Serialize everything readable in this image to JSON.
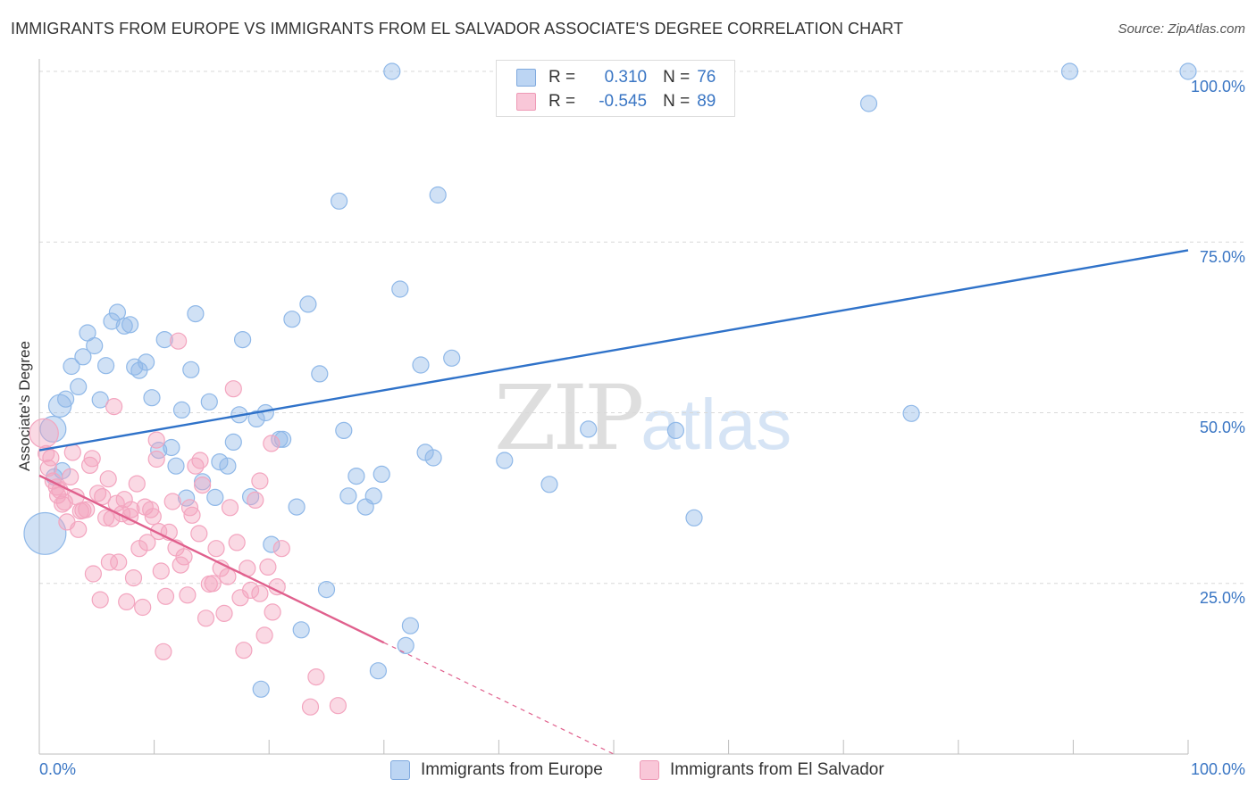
{
  "chart_data": {
    "type": "scatter",
    "title": "IMMIGRANTS FROM EUROPE VS IMMIGRANTS FROM EL SALVADOR ASSOCIATE'S DEGREE CORRELATION CHART",
    "source": "Source: ZipAtlas.com",
    "ylabel": "Associate's Degree",
    "xlim": [
      0,
      100
    ],
    "ylim": [
      0,
      100
    ],
    "x_tick_labels": [
      "0.0%",
      "100.0%"
    ],
    "y_tick_labels": [
      "25.0%",
      "50.0%",
      "75.0%",
      "100.0%"
    ],
    "y_ticks": [
      25,
      50,
      75,
      100
    ],
    "grid": true,
    "watermark": "ZIPatlas",
    "legend": {
      "placement": "top-center",
      "rows": [
        {
          "r_label": "R =",
          "r_value": "0.310",
          "n_label": "N =",
          "n_value": "76"
        },
        {
          "r_label": "R =",
          "r_value": "-0.545",
          "n_label": "N =",
          "n_value": "89"
        }
      ]
    },
    "series": [
      {
        "name": "Immigrants from Europe",
        "color": "#8fb8e8",
        "line_color": "#2f72c9",
        "trend": {
          "x": [
            0,
            100
          ],
          "y": [
            44.5,
            73.8
          ],
          "dashed_from": null
        },
        "points": [
          [
            0.5,
            32.3,
            2.6
          ],
          [
            1.2,
            47.6,
            1.6
          ],
          [
            1.3,
            40.6,
            1.0
          ],
          [
            1.8,
            51.0,
            1.4
          ],
          [
            2.3,
            52.0,
            1.0
          ],
          [
            2.8,
            56.8,
            1.0
          ],
          [
            3.4,
            53.8,
            1.0
          ],
          [
            3.8,
            58.2,
            1.0
          ],
          [
            4.2,
            61.7,
            1.0
          ],
          [
            4.8,
            59.8,
            1.0
          ],
          [
            5.3,
            51.9,
            1.0
          ],
          [
            5.8,
            56.9,
            1.0
          ],
          [
            6.3,
            63.4,
            1.0
          ],
          [
            6.8,
            64.7,
            1.0
          ],
          [
            7.4,
            62.7,
            1.0
          ],
          [
            7.9,
            62.9,
            1.0
          ],
          [
            8.3,
            56.7,
            1.0
          ],
          [
            8.7,
            56.2,
            1.0
          ],
          [
            9.3,
            57.4,
            1.0
          ],
          [
            9.8,
            52.2,
            1.0
          ],
          [
            10.4,
            44.5,
            1.0
          ],
          [
            10.9,
            60.7,
            1.0
          ],
          [
            11.5,
            44.9,
            1.0
          ],
          [
            11.9,
            42.2,
            1.0
          ],
          [
            12.4,
            50.4,
            1.0
          ],
          [
            12.8,
            37.5,
            1.0
          ],
          [
            13.2,
            56.3,
            1.0
          ],
          [
            13.6,
            64.5,
            1.0
          ],
          [
            14.2,
            39.9,
            1.0
          ],
          [
            14.8,
            51.6,
            1.0
          ],
          [
            15.3,
            37.6,
            1.0
          ],
          [
            15.7,
            42.8,
            1.0
          ],
          [
            16.4,
            42.2,
            1.0
          ],
          [
            16.9,
            45.7,
            1.0
          ],
          [
            17.4,
            49.7,
            1.0
          ],
          [
            17.7,
            60.7,
            1.0
          ],
          [
            18.4,
            37.7,
            1.0
          ],
          [
            18.9,
            49.1,
            1.0
          ],
          [
            19.3,
            9.5,
            1.0
          ],
          [
            19.7,
            50.0,
            1.0
          ],
          [
            20.2,
            30.7,
            1.0
          ],
          [
            20.9,
            46.1,
            1.0
          ],
          [
            21.2,
            46.1,
            1.0
          ],
          [
            22.0,
            63.7,
            1.0
          ],
          [
            22.4,
            36.2,
            1.0
          ],
          [
            22.8,
            18.2,
            1.0
          ],
          [
            23.4,
            65.9,
            1.0
          ],
          [
            24.4,
            55.7,
            1.0
          ],
          [
            25.0,
            24.1,
            1.0
          ],
          [
            26.1,
            81.0,
            1.0
          ],
          [
            26.5,
            47.4,
            1.0
          ],
          [
            26.9,
            37.8,
            1.0
          ],
          [
            27.6,
            40.7,
            1.0
          ],
          [
            28.4,
            36.2,
            1.0
          ],
          [
            29.1,
            37.8,
            1.0
          ],
          [
            29.5,
            12.2,
            1.0
          ],
          [
            29.8,
            41.0,
            1.0
          ],
          [
            30.7,
            100.0,
            1.0
          ],
          [
            31.4,
            68.1,
            1.0
          ],
          [
            31.9,
            15.9,
            1.0
          ],
          [
            32.3,
            18.8,
            1.0
          ],
          [
            33.2,
            57.0,
            1.0
          ],
          [
            33.6,
            44.2,
            1.0
          ],
          [
            34.3,
            43.4,
            1.0
          ],
          [
            34.7,
            81.9,
            1.0
          ],
          [
            35.9,
            58.0,
            1.0
          ],
          [
            40.5,
            43.0,
            1.0
          ],
          [
            44.4,
            39.5,
            1.0
          ],
          [
            47.8,
            47.6,
            1.0
          ],
          [
            55.4,
            47.4,
            1.0
          ],
          [
            57.0,
            34.6,
            1.0
          ],
          [
            72.2,
            95.3,
            1.0
          ],
          [
            75.9,
            49.9,
            1.0
          ],
          [
            89.7,
            100.0,
            1.0
          ],
          [
            100.0,
            100.0,
            1.0
          ],
          [
            2.0,
            41.5,
            1.0
          ]
        ]
      },
      {
        "name": "Immigrants from El Salvador",
        "color": "#f3a5bf",
        "line_color": "#e0608d",
        "trend": {
          "x": [
            0,
            50
          ],
          "y": [
            40.8,
            0.0
          ],
          "dashed_from": 30.0
        },
        "points": [
          [
            0.4,
            47.0,
            1.8
          ],
          [
            0.6,
            44.0,
            1.0
          ],
          [
            0.8,
            41.9,
            1.0
          ],
          [
            1.0,
            43.4,
            1.0
          ],
          [
            1.2,
            40.0,
            1.0
          ],
          [
            1.5,
            39.1,
            1.0
          ],
          [
            1.6,
            37.9,
            1.0
          ],
          [
            1.8,
            38.6,
            1.0
          ],
          [
            2.0,
            36.6,
            1.0
          ],
          [
            2.2,
            36.9,
            1.0
          ],
          [
            2.4,
            34.0,
            1.0
          ],
          [
            2.7,
            40.6,
            1.0
          ],
          [
            2.9,
            44.2,
            1.0
          ],
          [
            3.2,
            37.7,
            1.0
          ],
          [
            3.4,
            32.9,
            1.0
          ],
          [
            3.6,
            35.6,
            1.0
          ],
          [
            3.8,
            35.7,
            1.0
          ],
          [
            4.1,
            35.8,
            1.0
          ],
          [
            4.4,
            42.3,
            1.0
          ],
          [
            4.6,
            43.3,
            1.0
          ],
          [
            4.7,
            26.4,
            1.0
          ],
          [
            5.1,
            38.2,
            1.0
          ],
          [
            5.3,
            22.6,
            1.0
          ],
          [
            5.5,
            37.7,
            1.0
          ],
          [
            5.8,
            34.6,
            1.0
          ],
          [
            6.0,
            40.3,
            1.0
          ],
          [
            6.1,
            28.1,
            1.0
          ],
          [
            6.3,
            34.5,
            1.0
          ],
          [
            6.5,
            50.9,
            1.0
          ],
          [
            6.7,
            36.7,
            1.0
          ],
          [
            6.9,
            28.1,
            1.0
          ],
          [
            7.2,
            35.2,
            1.0
          ],
          [
            7.4,
            37.3,
            1.0
          ],
          [
            7.6,
            22.3,
            1.0
          ],
          [
            7.9,
            34.8,
            1.0
          ],
          [
            8.0,
            35.8,
            1.0
          ],
          [
            8.2,
            25.8,
            1.0
          ],
          [
            8.5,
            39.6,
            1.0
          ],
          [
            8.7,
            30.1,
            1.0
          ],
          [
            9.0,
            21.5,
            1.0
          ],
          [
            9.2,
            36.2,
            1.0
          ],
          [
            9.4,
            31.0,
            1.0
          ],
          [
            9.7,
            35.8,
            1.0
          ],
          [
            9.9,
            34.8,
            1.0
          ],
          [
            10.2,
            43.2,
            1.0
          ],
          [
            10.4,
            32.6,
            1.0
          ],
          [
            10.6,
            26.8,
            1.0
          ],
          [
            10.8,
            15.0,
            1.0
          ],
          [
            11.0,
            23.1,
            1.0
          ],
          [
            11.3,
            32.5,
            1.0
          ],
          [
            11.6,
            37.0,
            1.0
          ],
          [
            11.9,
            30.2,
            1.0
          ],
          [
            12.1,
            60.5,
            1.0
          ],
          [
            12.3,
            27.7,
            1.0
          ],
          [
            12.6,
            28.9,
            1.0
          ],
          [
            12.9,
            23.3,
            1.0
          ],
          [
            13.1,
            36.1,
            1.0
          ],
          [
            13.3,
            35.0,
            1.0
          ],
          [
            13.6,
            42.2,
            1.0
          ],
          [
            13.9,
            32.3,
            1.0
          ],
          [
            14.2,
            39.4,
            1.0
          ],
          [
            14.5,
            19.9,
            1.0
          ],
          [
            14.8,
            24.9,
            1.0
          ],
          [
            15.1,
            25.0,
            1.0
          ],
          [
            15.4,
            30.1,
            1.0
          ],
          [
            15.8,
            27.2,
            1.0
          ],
          [
            16.1,
            20.6,
            1.0
          ],
          [
            16.4,
            26.0,
            1.0
          ],
          [
            16.6,
            36.1,
            1.0
          ],
          [
            16.9,
            53.5,
            1.0
          ],
          [
            17.2,
            31.0,
            1.0
          ],
          [
            17.5,
            22.9,
            1.0
          ],
          [
            17.8,
            15.2,
            1.0
          ],
          [
            18.1,
            27.2,
            1.0
          ],
          [
            18.4,
            24.0,
            1.0
          ],
          [
            18.8,
            37.2,
            1.0
          ],
          [
            19.2,
            23.5,
            1.0
          ],
          [
            19.6,
            17.4,
            1.0
          ],
          [
            19.9,
            27.4,
            1.0
          ],
          [
            20.3,
            20.8,
            1.0
          ],
          [
            20.7,
            24.5,
            1.0
          ],
          [
            21.1,
            30.1,
            1.0
          ],
          [
            19.2,
            40.0,
            1.0
          ],
          [
            14.0,
            43.0,
            1.0
          ],
          [
            10.2,
            46.0,
            1.0
          ],
          [
            23.6,
            6.9,
            1.0
          ],
          [
            24.1,
            11.3,
            1.0
          ],
          [
            26.0,
            7.1,
            1.0
          ],
          [
            20.2,
            45.5,
            1.0
          ]
        ]
      }
    ]
  },
  "legend_bottom": {
    "europe_label": "Immigrants from Europe",
    "salvador_label": "Immigrants from El Salvador"
  }
}
